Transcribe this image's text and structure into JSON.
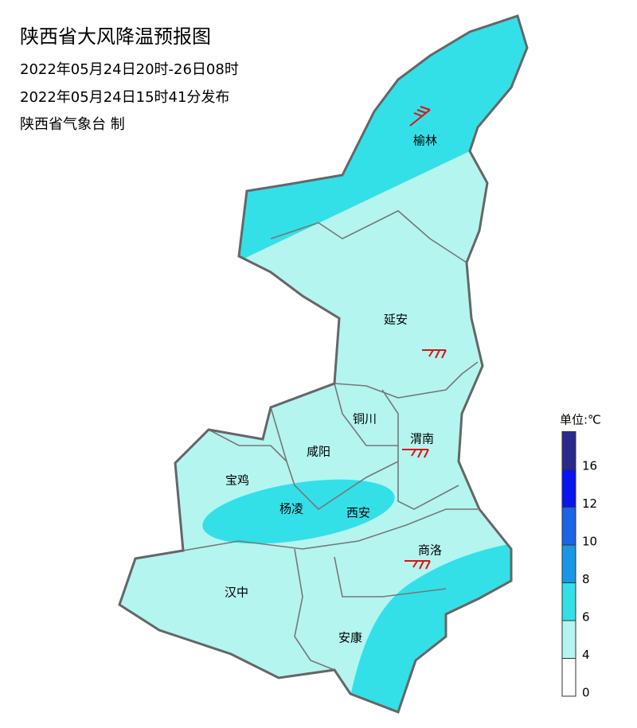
{
  "title": "陕西省大风降温预报图",
  "subtitle": [
    "2022年05月24日20时-26日08时",
    "2022年05月24日15时41分发布",
    "陕西省气象台 制"
  ],
  "cities": [
    "榆林",
    "延安",
    "铜川",
    "渭南",
    "咸阳",
    "宝鸡",
    "杨凌",
    "西安",
    "商洛",
    "汉中",
    "安康"
  ],
  "legend": {
    "unit": "单位:℃",
    "ticks": [
      0,
      4,
      6,
      8,
      10,
      12,
      16
    ],
    "colors": [
      "#ffffff",
      "#b4f5f0",
      "#33e0e8",
      "#1a96e6",
      "#1a64e6",
      "#0a14f0",
      "#2a2a8c"
    ]
  }
}
